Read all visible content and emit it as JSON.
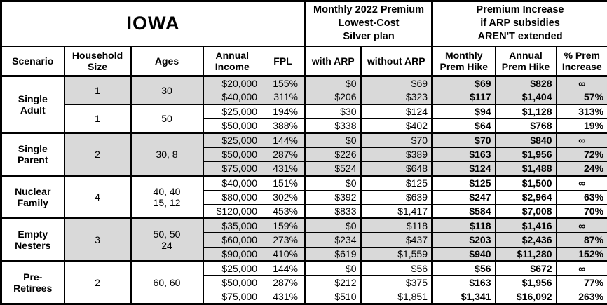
{
  "title": "IOWA",
  "header": {
    "premium_group": "Monthly 2022 Premium\nLowest-Cost\nSilver plan",
    "increase_group": "Premium Increase\nif ARP subsidies\nAREN'T extended",
    "columns": [
      "Scenario",
      "Household Size",
      "Ages",
      "Annual Income",
      "FPL",
      "with ARP",
      "without ARP",
      "Monthly Prem Hike",
      "Annual Prem Hike",
      "% Prem Increase"
    ]
  },
  "colors": {
    "shaded_row": "#d9d9d9",
    "border": "#000000",
    "background": "#ffffff"
  },
  "infinity_symbol": "∞",
  "groups": [
    {
      "scenario": "Single Adult",
      "subgroups": [
        {
          "household_size": "1",
          "ages": "30",
          "shaded": true,
          "rows": [
            {
              "income": "$20,000",
              "fpl": "155%",
              "with_arp": "$0",
              "without_arp": "$69",
              "monthly_hike": "$69",
              "annual_hike": "$828",
              "pct_increase": "∞"
            },
            {
              "income": "$40,000",
              "fpl": "311%",
              "with_arp": "$206",
              "without_arp": "$323",
              "monthly_hike": "$117",
              "annual_hike": "$1,404",
              "pct_increase": "57%"
            }
          ]
        },
        {
          "household_size": "1",
          "ages": "50",
          "shaded": false,
          "rows": [
            {
              "income": "$25,000",
              "fpl": "194%",
              "with_arp": "$30",
              "without_arp": "$124",
              "monthly_hike": "$94",
              "annual_hike": "$1,128",
              "pct_increase": "313%"
            },
            {
              "income": "$50,000",
              "fpl": "388%",
              "with_arp": "$338",
              "without_arp": "$402",
              "monthly_hike": "$64",
              "annual_hike": "$768",
              "pct_increase": "19%"
            }
          ]
        }
      ]
    },
    {
      "scenario": "Single Parent",
      "subgroups": [
        {
          "household_size": "2",
          "ages": "30, 8",
          "shaded": true,
          "rows": [
            {
              "income": "$25,000",
              "fpl": "144%",
              "with_arp": "$0",
              "without_arp": "$70",
              "monthly_hike": "$70",
              "annual_hike": "$840",
              "pct_increase": "∞"
            },
            {
              "income": "$50,000",
              "fpl": "287%",
              "with_arp": "$226",
              "without_arp": "$389",
              "monthly_hike": "$163",
              "annual_hike": "$1,956",
              "pct_increase": "72%"
            },
            {
              "income": "$75,000",
              "fpl": "431%",
              "with_arp": "$524",
              "without_arp": "$648",
              "monthly_hike": "$124",
              "annual_hike": "$1,488",
              "pct_increase": "24%"
            }
          ]
        }
      ]
    },
    {
      "scenario": "Nuclear Family",
      "subgroups": [
        {
          "household_size": "4",
          "ages": "40, 40\n15, 12",
          "shaded": false,
          "rows": [
            {
              "income": "$40,000",
              "fpl": "151%",
              "with_arp": "$0",
              "without_arp": "$125",
              "monthly_hike": "$125",
              "annual_hike": "$1,500",
              "pct_increase": "∞"
            },
            {
              "income": "$80,000",
              "fpl": "302%",
              "with_arp": "$392",
              "without_arp": "$639",
              "monthly_hike": "$247",
              "annual_hike": "$2,964",
              "pct_increase": "63%"
            },
            {
              "income": "$120,000",
              "fpl": "453%",
              "with_arp": "$833",
              "without_arp": "$1,417",
              "monthly_hike": "$584",
              "annual_hike": "$7,008",
              "pct_increase": "70%"
            }
          ]
        }
      ]
    },
    {
      "scenario": "Empty Nesters",
      "subgroups": [
        {
          "household_size": "3",
          "ages": "50, 50\n24",
          "shaded": true,
          "rows": [
            {
              "income": "$35,000",
              "fpl": "159%",
              "with_arp": "$0",
              "without_arp": "$118",
              "monthly_hike": "$118",
              "annual_hike": "$1,416",
              "pct_increase": "∞"
            },
            {
              "income": "$60,000",
              "fpl": "273%",
              "with_arp": "$234",
              "without_arp": "$437",
              "monthly_hike": "$203",
              "annual_hike": "$2,436",
              "pct_increase": "87%"
            },
            {
              "income": "$90,000",
              "fpl": "410%",
              "with_arp": "$619",
              "without_arp": "$1,559",
              "monthly_hike": "$940",
              "annual_hike": "$11,280",
              "pct_increase": "152%"
            }
          ]
        }
      ]
    },
    {
      "scenario": "Pre-Retirees",
      "subgroups": [
        {
          "household_size": "2",
          "ages": "60, 60",
          "shaded": false,
          "rows": [
            {
              "income": "$25,000",
              "fpl": "144%",
              "with_arp": "$0",
              "without_arp": "$56",
              "monthly_hike": "$56",
              "annual_hike": "$672",
              "pct_increase": "∞"
            },
            {
              "income": "$50,000",
              "fpl": "287%",
              "with_arp": "$212",
              "without_arp": "$375",
              "monthly_hike": "$163",
              "annual_hike": "$1,956",
              "pct_increase": "77%"
            },
            {
              "income": "$75,000",
              "fpl": "431%",
              "with_arp": "$510",
              "without_arp": "$1,851",
              "monthly_hike": "$1,341",
              "annual_hike": "$16,092",
              "pct_increase": "263%"
            }
          ]
        }
      ]
    }
  ]
}
